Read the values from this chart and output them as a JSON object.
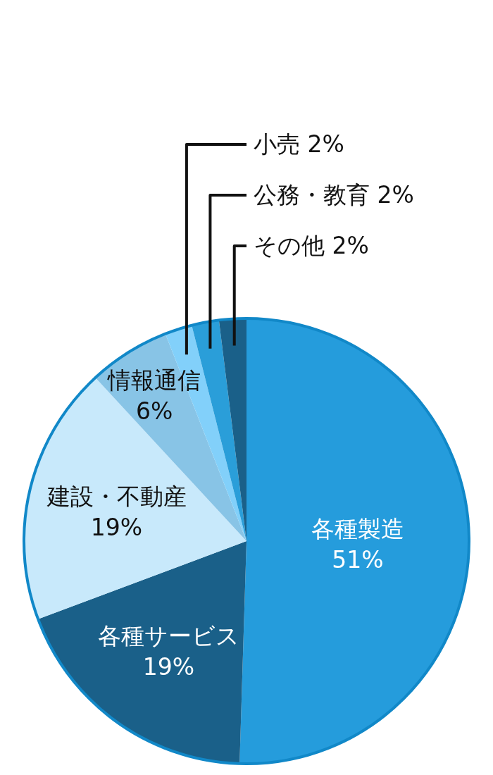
{
  "chart_data": {
    "type": "pie",
    "categories": [
      "各種製造",
      "各種サービス",
      "建設・不動産",
      "情報通信",
      "小売",
      "公務・教育",
      "その他"
    ],
    "values": [
      51,
      19,
      19,
      6,
      2,
      2,
      2
    ],
    "value_labels": [
      "51%",
      "19%",
      "19%",
      "6%",
      "2%",
      "2%",
      "2%"
    ],
    "colors": [
      "#259cdc",
      "#1a6089",
      "#c8e9fb",
      "#88c4e6",
      "#82d0fa",
      "#2a9ed9",
      "#1a6089"
    ]
  }
}
